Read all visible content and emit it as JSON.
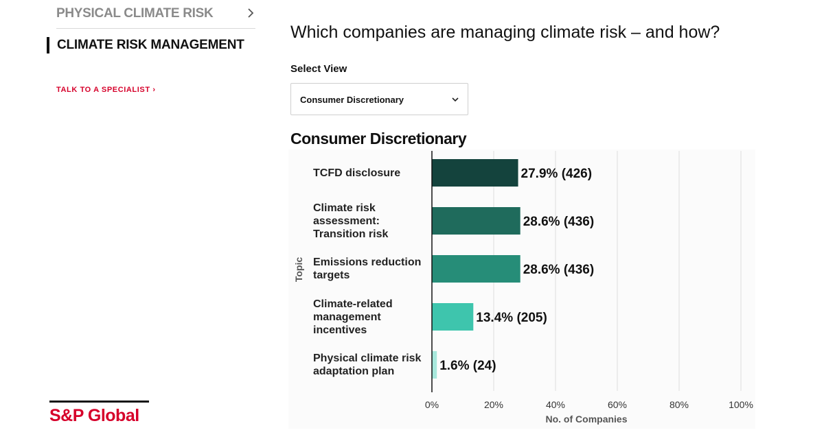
{
  "sidebar": {
    "items": [
      {
        "label": "PHYSICAL CLIMATE RISK"
      },
      {
        "label": "CLIMATE RISK MANAGEMENT"
      }
    ],
    "talk_link": "TALK TO A SPECIALIST ›"
  },
  "logo": {
    "text": "S&P Global"
  },
  "main": {
    "heading": "Which companies are managing climate risk – and how?",
    "select_label": "Select View",
    "select_value": "Consumer Discretionary"
  },
  "colors": {
    "brand_red": "#d6002a",
    "bars": [
      "#14433d",
      "#1f6b5c",
      "#268d78",
      "#3ec5ad",
      "#a7e8dc"
    ]
  },
  "chart_data": {
    "type": "bar",
    "orientation": "horizontal",
    "title": "Consumer Discretionary",
    "xlabel": "No. of Companies",
    "ylabel": "Topic",
    "xlim": [
      0,
      100
    ],
    "x_ticks": [
      "0%",
      "20%",
      "40%",
      "60%",
      "80%",
      "100%"
    ],
    "grid": true,
    "categories": [
      [
        "TCFD disclosure"
      ],
      [
        "Climate risk",
        "assessment:",
        "Transition risk"
      ],
      [
        "Emissions reduction",
        "targets"
      ],
      [
        "Climate-related",
        "management",
        "incentives"
      ],
      [
        "Physical climate risk",
        "adaptation plan"
      ]
    ],
    "values": [
      27.9,
      28.6,
      28.6,
      13.4,
      1.6
    ],
    "data_labels": [
      "27.9% (426)",
      "28.6% (436)",
      "28.6% (436)",
      "13.4% (205)",
      "1.6% (24)"
    ]
  }
}
